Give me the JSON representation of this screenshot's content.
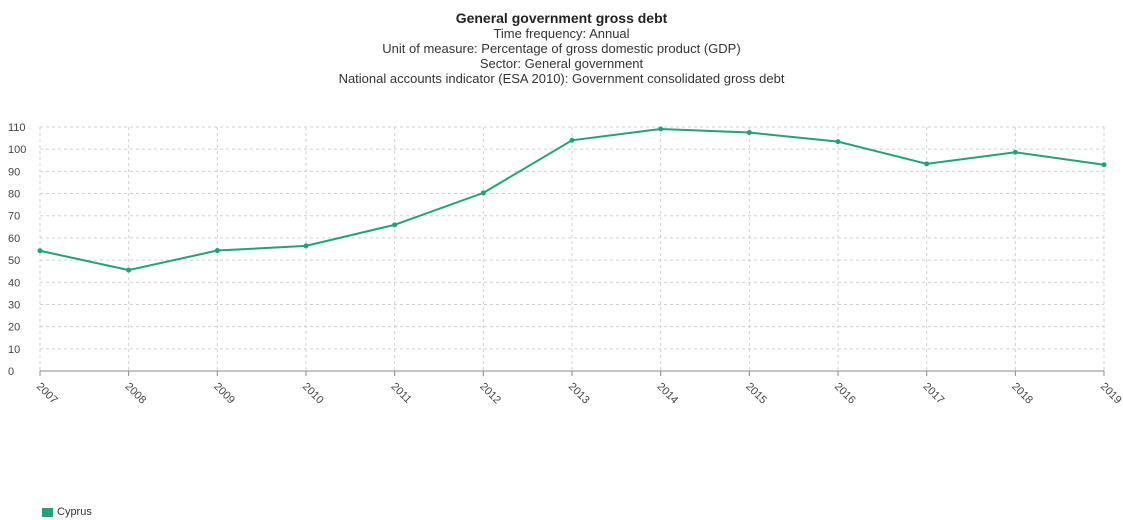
{
  "titles": {
    "main": "General government gross debt",
    "lines": [
      "Time frequency: Annual",
      "Unit of measure: Percentage of gross domestic product (GDP)",
      "Sector: General government",
      "National accounts indicator (ESA 2010): Government consolidated gross debt"
    ]
  },
  "legend": {
    "items": [
      {
        "name": "Cyprus",
        "color": "#22a17a"
      }
    ]
  },
  "chart_data": {
    "type": "line",
    "title": "General government gross debt",
    "x": [
      "2007",
      "2008",
      "2009",
      "2010",
      "2011",
      "2012",
      "2013",
      "2014",
      "2015",
      "2016",
      "2017",
      "2018",
      "2019"
    ],
    "series": [
      {
        "name": "Cyprus",
        "color": "#22a17a",
        "values": [
          54.2,
          45.5,
          54.3,
          56.4,
          65.9,
          80.3,
          104.0,
          109.1,
          107.5,
          103.4,
          93.4,
          98.6,
          93.0
        ]
      }
    ],
    "yticks": [
      0,
      10,
      20,
      30,
      40,
      50,
      60,
      70,
      80,
      90,
      100,
      110
    ],
    "ylim": [
      0,
      110
    ],
    "grid": true,
    "legend_position": "bottom-left"
  }
}
